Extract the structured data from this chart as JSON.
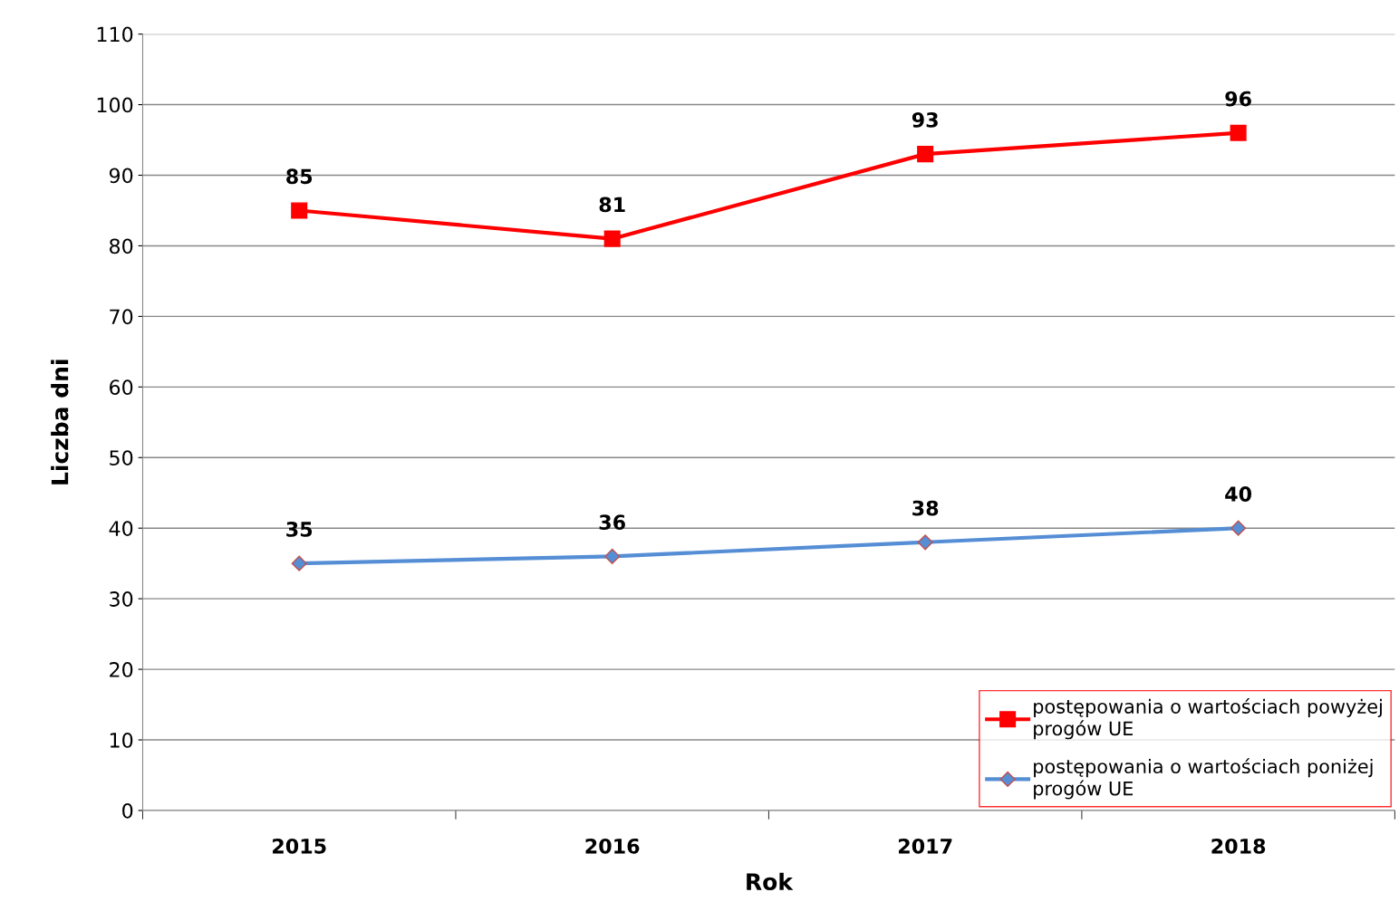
{
  "chart_data": {
    "type": "line",
    "xlabel": "Rok",
    "ylabel": "Liczba dni",
    "categories": [
      "2015",
      "2016",
      "2017",
      "2018"
    ],
    "series": [
      {
        "name": "postępowania o wartościach powyżej progów UE",
        "color": "#ff0000",
        "marker": "square",
        "values": [
          85,
          81,
          93,
          96
        ]
      },
      {
        "name": "postępowania o wartościach poniżej progów UE",
        "color": "#558ed5",
        "marker": "diamond",
        "values": [
          35,
          36,
          38,
          40
        ]
      }
    ],
    "ylim": [
      0,
      110
    ],
    "yticks": [
      0,
      10,
      20,
      30,
      40,
      50,
      60,
      70,
      80,
      90,
      100,
      110
    ],
    "grid": "y",
    "legend": "bottom right",
    "data_labels": true,
    "line_style": "solid"
  }
}
